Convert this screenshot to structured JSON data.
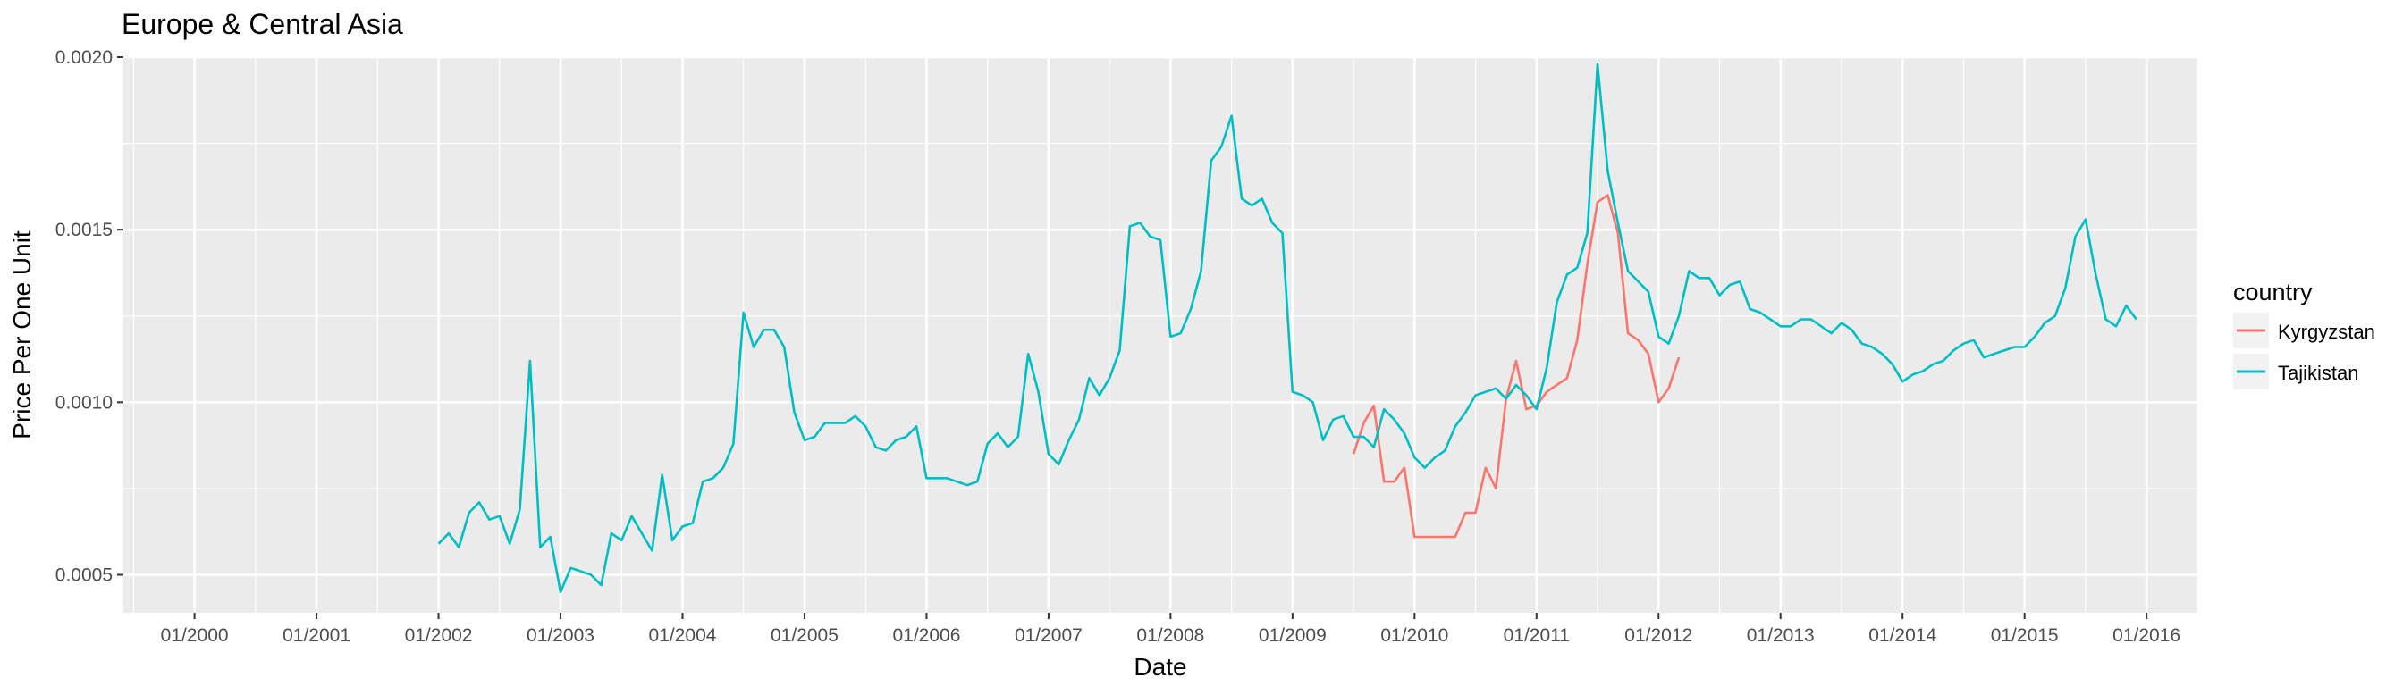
{
  "chart_data": {
    "type": "line",
    "title": "Europe & Central Asia",
    "xlabel": "Date",
    "ylabel": "Price Per One Unit",
    "xlim": [
      "1999-06",
      "2016-06"
    ],
    "ylim": [
      0.00039,
      0.002
    ],
    "x_ticks": [
      "01/2000",
      "01/2001",
      "01/2002",
      "01/2003",
      "01/2004",
      "01/2005",
      "01/2006",
      "01/2007",
      "01/2008",
      "01/2009",
      "01/2010",
      "01/2011",
      "01/2012",
      "01/2013",
      "01/2014",
      "01/2015",
      "01/2016"
    ],
    "x_tick_dates": [
      "2000-01",
      "2001-01",
      "2002-01",
      "2003-01",
      "2004-01",
      "2005-01",
      "2006-01",
      "2007-01",
      "2008-01",
      "2009-01",
      "2010-01",
      "2011-01",
      "2012-01",
      "2013-01",
      "2014-01",
      "2015-01",
      "2016-01"
    ],
    "y_ticks": [
      0.0005,
      0.001,
      0.0015,
      0.002
    ],
    "y_tick_labels": [
      "0.0005",
      "0.0010",
      "0.0015",
      "0.0020"
    ],
    "grid": true,
    "legend": {
      "title": "country",
      "position": "right"
    },
    "series": [
      {
        "name": "Kyrgyzstan",
        "color": "#F8766D",
        "points": [
          [
            "2009-07",
            0.00085
          ],
          [
            "2009-08",
            0.00094
          ],
          [
            "2009-09",
            0.00099
          ],
          [
            "2009-10",
            0.00077
          ],
          [
            "2009-11",
            0.00077
          ],
          [
            "2009-12",
            0.00081
          ],
          [
            "2010-01",
            0.00061
          ],
          [
            "2010-02",
            0.00061
          ],
          [
            "2010-03",
            0.00061
          ],
          [
            "2010-04",
            0.00061
          ],
          [
            "2010-05",
            0.00061
          ],
          [
            "2010-06",
            0.00068
          ],
          [
            "2010-07",
            0.00068
          ],
          [
            "2010-08",
            0.00081
          ],
          [
            "2010-09",
            0.00075
          ],
          [
            "2010-10",
            0.00101
          ],
          [
            "2010-11",
            0.00112
          ],
          [
            "2010-12",
            0.00098
          ],
          [
            "2011-01",
            0.00099
          ],
          [
            "2011-02",
            0.00103
          ],
          [
            "2011-03",
            0.00105
          ],
          [
            "2011-04",
            0.00107
          ],
          [
            "2011-05",
            0.00118
          ],
          [
            "2011-06",
            0.0014
          ],
          [
            "2011-07",
            0.00158
          ],
          [
            "2011-08",
            0.0016
          ],
          [
            "2011-09",
            0.00149
          ],
          [
            "2011-10",
            0.0012
          ],
          [
            "2011-11",
            0.00118
          ],
          [
            "2011-12",
            0.00114
          ],
          [
            "2012-01",
            0.001
          ],
          [
            "2012-02",
            0.00104
          ],
          [
            "2012-03",
            0.00113
          ]
        ]
      },
      {
        "name": "Tajikistan",
        "color": "#00BFC4",
        "points": [
          [
            "2002-01",
            0.00059
          ],
          [
            "2002-02",
            0.00062
          ],
          [
            "2002-03",
            0.00058
          ],
          [
            "2002-04",
            0.00068
          ],
          [
            "2002-05",
            0.00071
          ],
          [
            "2002-06",
            0.00066
          ],
          [
            "2002-07",
            0.00067
          ],
          [
            "2002-08",
            0.00059
          ],
          [
            "2002-09",
            0.00069
          ],
          [
            "2002-10",
            0.00112
          ],
          [
            "2002-11",
            0.00058
          ],
          [
            "2002-12",
            0.00061
          ],
          [
            "2003-01",
            0.00045
          ],
          [
            "2003-02",
            0.00052
          ],
          [
            "2003-03",
            0.00051
          ],
          [
            "2003-04",
            0.0005
          ],
          [
            "2003-05",
            0.00047
          ],
          [
            "2003-06",
            0.00062
          ],
          [
            "2003-07",
            0.0006
          ],
          [
            "2003-08",
            0.00067
          ],
          [
            "2003-09",
            0.00062
          ],
          [
            "2003-10",
            0.00057
          ],
          [
            "2003-11",
            0.00079
          ],
          [
            "2003-12",
            0.0006
          ],
          [
            "2004-01",
            0.00064
          ],
          [
            "2004-02",
            0.00065
          ],
          [
            "2004-03",
            0.00077
          ],
          [
            "2004-04",
            0.00078
          ],
          [
            "2004-05",
            0.00081
          ],
          [
            "2004-06",
            0.00088
          ],
          [
            "2004-07",
            0.00126
          ],
          [
            "2004-08",
            0.00116
          ],
          [
            "2004-09",
            0.00121
          ],
          [
            "2004-10",
            0.00121
          ],
          [
            "2004-11",
            0.00116
          ],
          [
            "2004-12",
            0.00097
          ],
          [
            "2005-01",
            0.00089
          ],
          [
            "2005-02",
            0.0009
          ],
          [
            "2005-03",
            0.00094
          ],
          [
            "2005-04",
            0.00094
          ],
          [
            "2005-05",
            0.00094
          ],
          [
            "2005-06",
            0.00096
          ],
          [
            "2005-07",
            0.00093
          ],
          [
            "2005-08",
            0.00087
          ],
          [
            "2005-09",
            0.00086
          ],
          [
            "2005-10",
            0.00089
          ],
          [
            "2005-11",
            0.0009
          ],
          [
            "2005-12",
            0.00093
          ],
          [
            "2006-01",
            0.00078
          ],
          [
            "2006-02",
            0.00078
          ],
          [
            "2006-03",
            0.00078
          ],
          [
            "2006-04",
            0.00077
          ],
          [
            "2006-05",
            0.00076
          ],
          [
            "2006-06",
            0.00077
          ],
          [
            "2006-07",
            0.00088
          ],
          [
            "2006-08",
            0.00091
          ],
          [
            "2006-09",
            0.00087
          ],
          [
            "2006-10",
            0.0009
          ],
          [
            "2006-11",
            0.00114
          ],
          [
            "2006-12",
            0.00103
          ],
          [
            "2007-01",
            0.00085
          ],
          [
            "2007-02",
            0.00082
          ],
          [
            "2007-03",
            0.00089
          ],
          [
            "2007-04",
            0.00095
          ],
          [
            "2007-05",
            0.00107
          ],
          [
            "2007-06",
            0.00102
          ],
          [
            "2007-07",
            0.00107
          ],
          [
            "2007-08",
            0.00115
          ],
          [
            "2007-09",
            0.00151
          ],
          [
            "2007-10",
            0.00152
          ],
          [
            "2007-11",
            0.00148
          ],
          [
            "2007-12",
            0.00147
          ],
          [
            "2008-01",
            0.00119
          ],
          [
            "2008-02",
            0.0012
          ],
          [
            "2008-03",
            0.00127
          ],
          [
            "2008-04",
            0.00138
          ],
          [
            "2008-05",
            0.0017
          ],
          [
            "2008-06",
            0.00174
          ],
          [
            "2008-07",
            0.00183
          ],
          [
            "2008-08",
            0.00159
          ],
          [
            "2008-09",
            0.00157
          ],
          [
            "2008-10",
            0.00159
          ],
          [
            "2008-11",
            0.00152
          ],
          [
            "2008-12",
            0.00149
          ],
          [
            "2009-01",
            0.00103
          ],
          [
            "2009-02",
            0.00102
          ],
          [
            "2009-03",
            0.001
          ],
          [
            "2009-04",
            0.00089
          ],
          [
            "2009-05",
            0.00095
          ],
          [
            "2009-06",
            0.00096
          ],
          [
            "2009-07",
            0.0009
          ],
          [
            "2009-08",
            0.0009
          ],
          [
            "2009-09",
            0.00087
          ],
          [
            "2009-10",
            0.00098
          ],
          [
            "2009-11",
            0.00095
          ],
          [
            "2009-12",
            0.00091
          ],
          [
            "2010-01",
            0.00084
          ],
          [
            "2010-02",
            0.00081
          ],
          [
            "2010-03",
            0.00084
          ],
          [
            "2010-04",
            0.00086
          ],
          [
            "2010-05",
            0.00093
          ],
          [
            "2010-06",
            0.00097
          ],
          [
            "2010-07",
            0.00102
          ],
          [
            "2010-08",
            0.00103
          ],
          [
            "2010-09",
            0.00104
          ],
          [
            "2010-10",
            0.00101
          ],
          [
            "2010-11",
            0.00105
          ],
          [
            "2010-12",
            0.00102
          ],
          [
            "2011-01",
            0.00098
          ],
          [
            "2011-02",
            0.0011
          ],
          [
            "2011-03",
            0.00129
          ],
          [
            "2011-04",
            0.00137
          ],
          [
            "2011-05",
            0.00139
          ],
          [
            "2011-06",
            0.00149
          ],
          [
            "2011-07",
            0.00198
          ],
          [
            "2011-08",
            0.00167
          ],
          [
            "2011-09",
            0.00152
          ],
          [
            "2011-10",
            0.00138
          ],
          [
            "2011-11",
            0.00135
          ],
          [
            "2011-12",
            0.00132
          ],
          [
            "2012-01",
            0.00119
          ],
          [
            "2012-02",
            0.00117
          ],
          [
            "2012-03",
            0.00125
          ],
          [
            "2012-04",
            0.00138
          ],
          [
            "2012-05",
            0.00136
          ],
          [
            "2012-06",
            0.00136
          ],
          [
            "2012-07",
            0.00131
          ],
          [
            "2012-08",
            0.00134
          ],
          [
            "2012-09",
            0.00135
          ],
          [
            "2012-10",
            0.00127
          ],
          [
            "2012-11",
            0.00126
          ],
          [
            "2012-12",
            0.00124
          ],
          [
            "2013-01",
            0.00122
          ],
          [
            "2013-02",
            0.00122
          ],
          [
            "2013-03",
            0.00124
          ],
          [
            "2013-04",
            0.00124
          ],
          [
            "2013-05",
            0.00122
          ],
          [
            "2013-06",
            0.0012
          ],
          [
            "2013-07",
            0.00123
          ],
          [
            "2013-08",
            0.00121
          ],
          [
            "2013-09",
            0.00117
          ],
          [
            "2013-10",
            0.00116
          ],
          [
            "2013-11",
            0.00114
          ],
          [
            "2013-12",
            0.00111
          ],
          [
            "2014-01",
            0.00106
          ],
          [
            "2014-02",
            0.00108
          ],
          [
            "2014-03",
            0.00109
          ],
          [
            "2014-04",
            0.00111
          ],
          [
            "2014-05",
            0.00112
          ],
          [
            "2014-06",
            0.00115
          ],
          [
            "2014-07",
            0.00117
          ],
          [
            "2014-08",
            0.00118
          ],
          [
            "2014-09",
            0.00113
          ],
          [
            "2014-10",
            0.00114
          ],
          [
            "2014-11",
            0.00115
          ],
          [
            "2014-12",
            0.00116
          ],
          [
            "2015-01",
            0.00116
          ],
          [
            "2015-02",
            0.00119
          ],
          [
            "2015-03",
            0.00123
          ],
          [
            "2015-04",
            0.00125
          ],
          [
            "2015-05",
            0.00133
          ],
          [
            "2015-06",
            0.00148
          ],
          [
            "2015-07",
            0.00153
          ],
          [
            "2015-08",
            0.00137
          ],
          [
            "2015-09",
            0.00124
          ],
          [
            "2015-10",
            0.00122
          ],
          [
            "2015-11",
            0.00128
          ],
          [
            "2015-12",
            0.00124
          ]
        ]
      }
    ],
    "colors": {
      "panel": "#EBEBEB",
      "grid": "#FFFFFF",
      "text": "#000000",
      "tick_text": "#4D4D4D"
    }
  }
}
